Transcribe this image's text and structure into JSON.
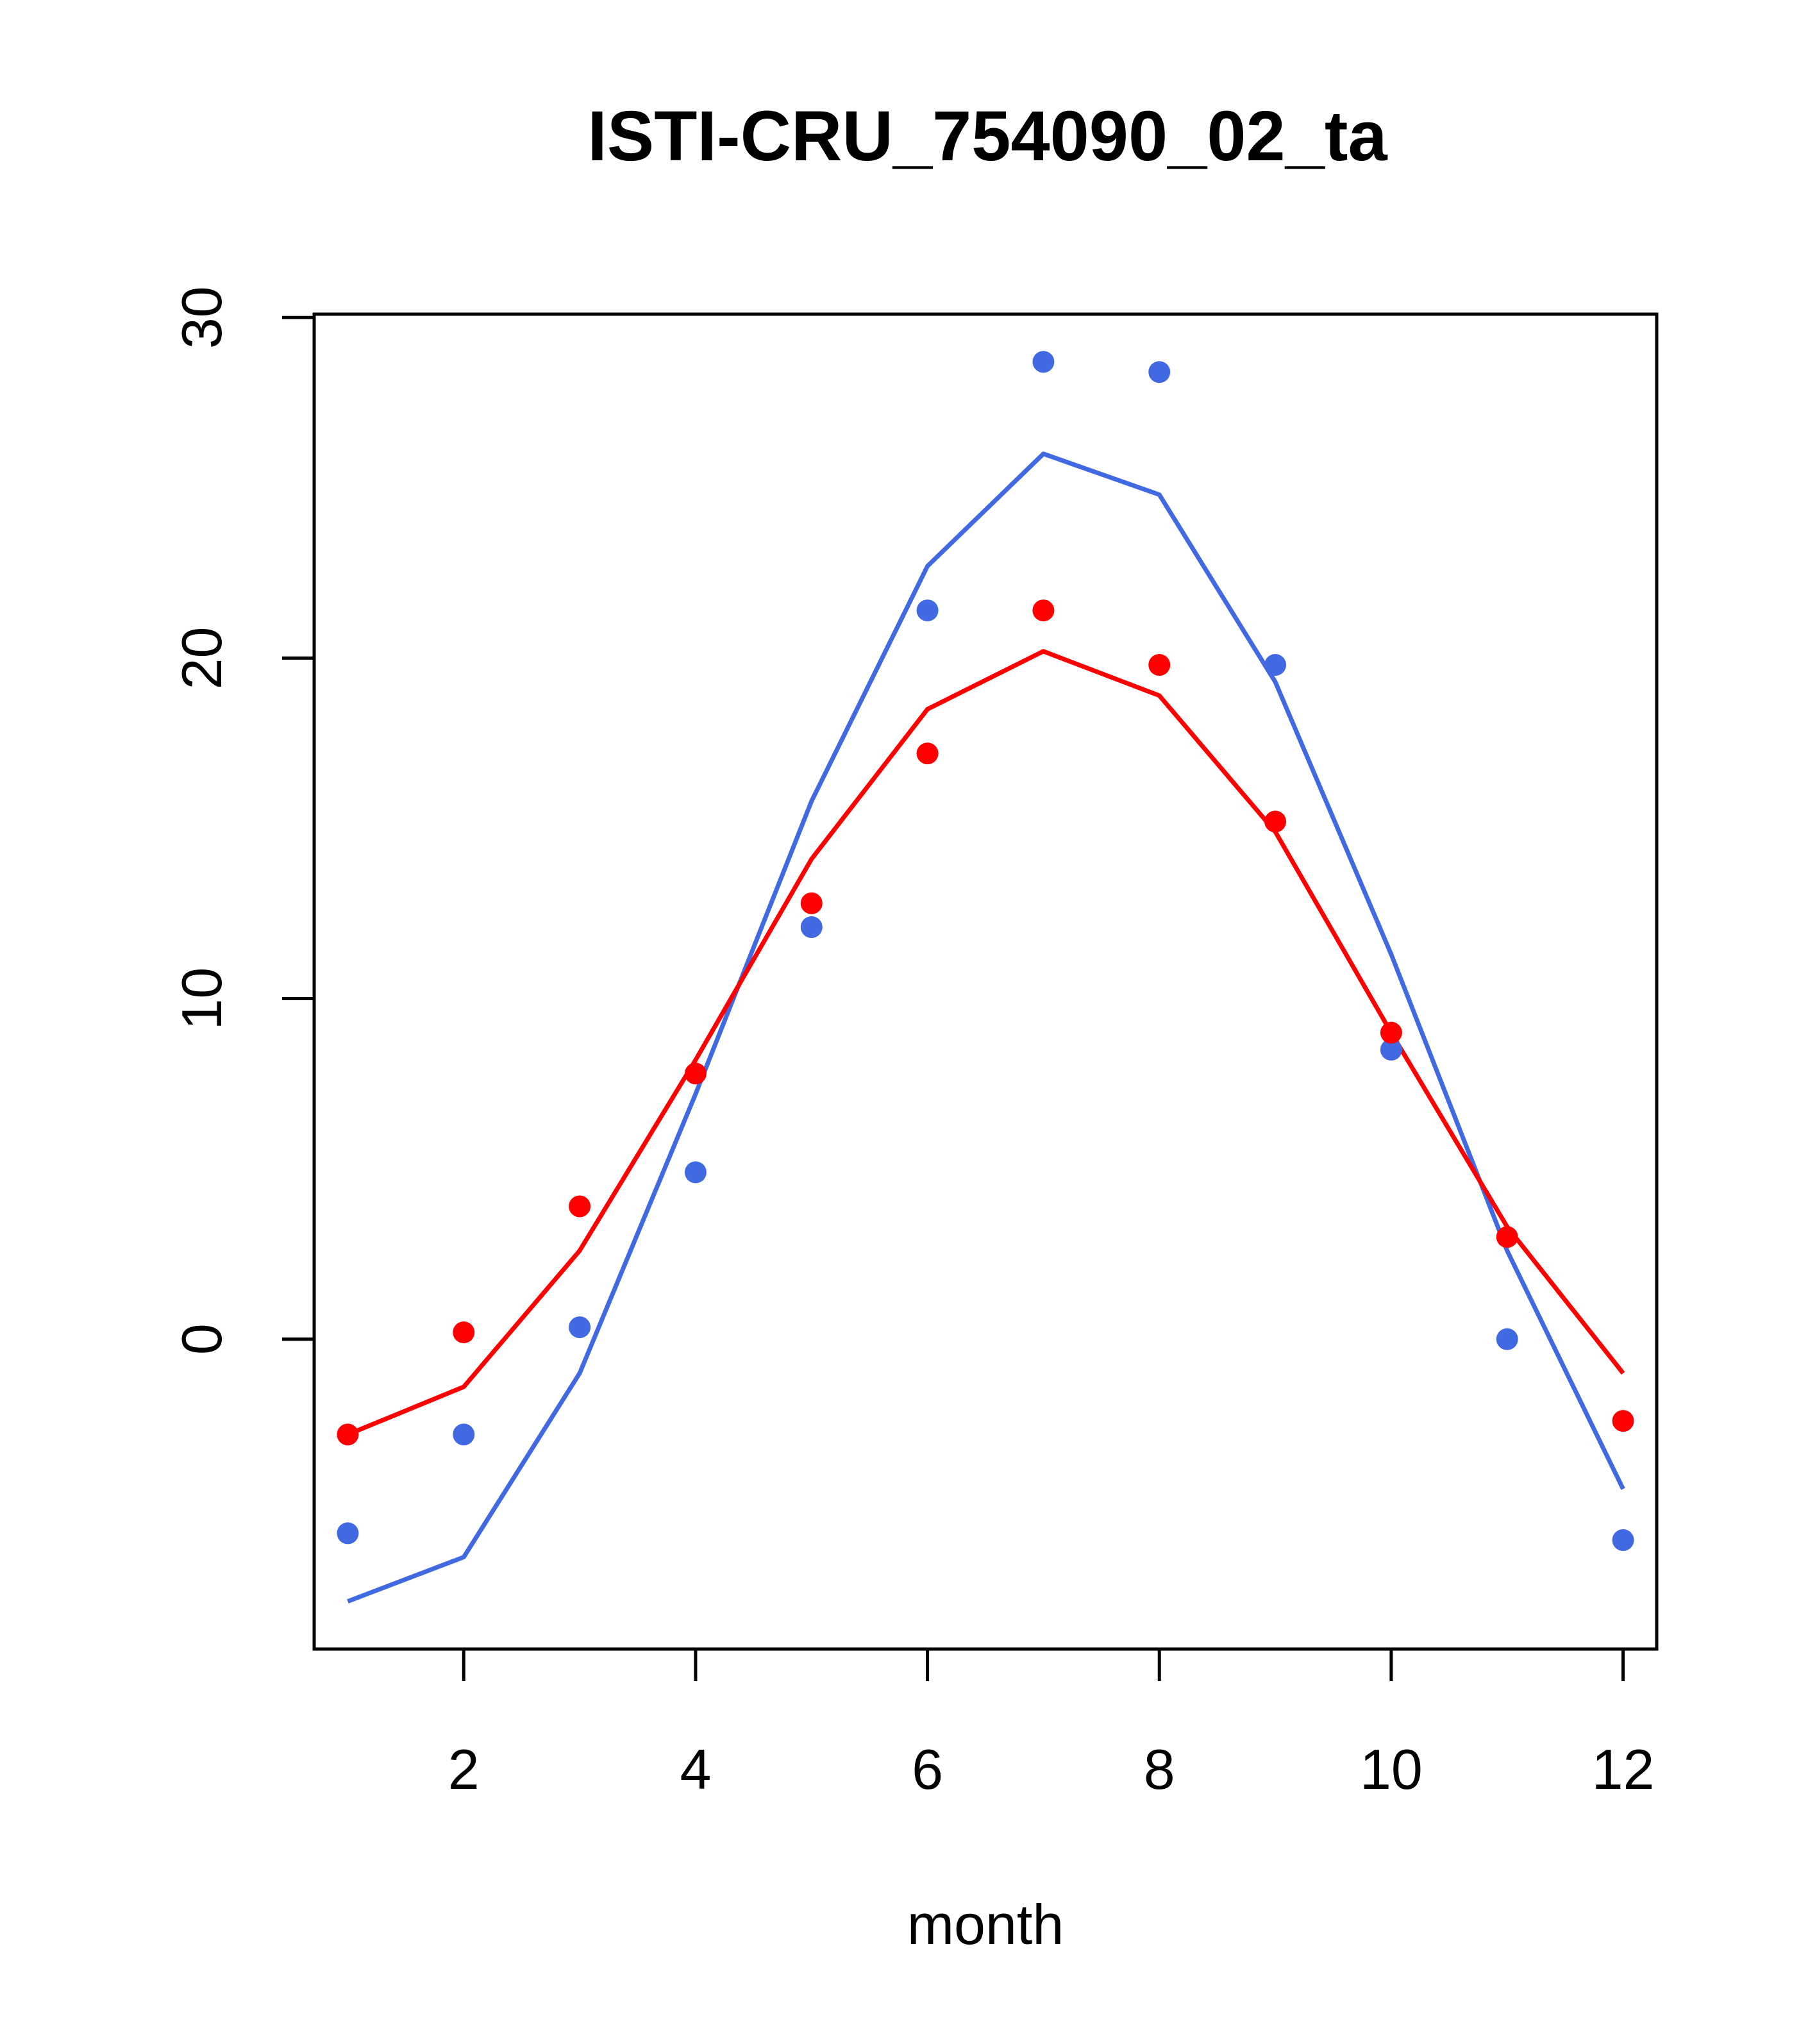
{
  "chart_data": {
    "type": "line",
    "title": "ISTI-CRU_754090_02_ta",
    "xlabel": "month",
    "ylabel": "",
    "xlim": [
      0.71,
      12.29
    ],
    "ylim": [
      -9.1,
      30.1
    ],
    "xticks": [
      2,
      4,
      6,
      8,
      10,
      12
    ],
    "yticks": [
      0,
      10,
      20,
      30
    ],
    "grid": false,
    "legend": "none",
    "x": [
      1,
      2,
      3,
      4,
      5,
      6,
      7,
      8,
      9,
      10,
      11,
      12
    ],
    "series": [
      {
        "color": "#4169E1",
        "points": [
          -5.7,
          -2.8,
          0.35,
          4.9,
          12.1,
          21.4,
          28.7,
          28.4,
          19.8,
          8.5,
          0,
          -5.9
        ],
        "line": [
          -7.7,
          -6.4,
          -1.0,
          7.2,
          15.8,
          22.7,
          26.0,
          24.8,
          19.3,
          11.3,
          2.6,
          -4.4
        ]
      },
      {
        "color": "#FF0000",
        "points": [
          -2.8,
          0.2,
          3.9,
          7.8,
          12.8,
          17.2,
          21.4,
          19.8,
          15.2,
          9.0,
          3.0,
          -2.4
        ],
        "line": [
          -2.8,
          -1.4,
          2.6,
          8.2,
          14.1,
          18.5,
          20.2,
          18.9,
          14.9,
          9.0,
          3.3,
          -1.0
        ]
      }
    ]
  }
}
